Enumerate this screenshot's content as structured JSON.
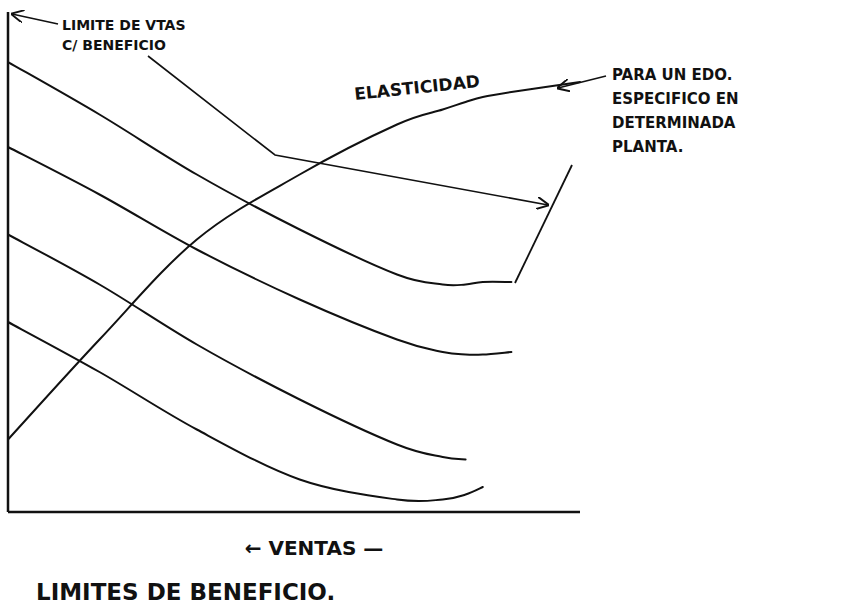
{
  "chart_data": {
    "type": "line",
    "title": "LIMITES DE BENEFICIO.",
    "x_label": "← VENTAS —",
    "x": [
      0,
      16,
      33,
      51,
      68,
      76,
      80,
      83,
      88,
      100
    ],
    "xlim": [
      0,
      100
    ],
    "ylim": [
      0,
      100
    ],
    "tick_labels": false,
    "grid": false,
    "series": [
      {
        "color": "#111111",
        "values": [
          90,
          79.5,
          67.5,
          56.5,
          47.5,
          45.5,
          45.5,
          46,
          46,
          null
        ]
      },
      {
        "color": "#111111",
        "values": [
          73,
          63.5,
          52.5,
          42.5,
          34.5,
          32,
          31.5,
          31.5,
          32,
          null
        ]
      },
      {
        "color": "#111111",
        "values": [
          55.5,
          45.5,
          33.5,
          22.5,
          13.5,
          11,
          10.5,
          null,
          null,
          null
        ]
      },
      {
        "color": "#111111",
        "values": [
          38,
          28,
          16.5,
          6.5,
          2.5,
          2.5,
          3.5,
          5,
          null,
          null
        ]
      },
      {
        "name": "ELASTICIDAD",
        "color": "#111111",
        "values": [
          14.5,
          34.5,
          54.5,
          67.5,
          77.5,
          80.5,
          82,
          83,
          84,
          86
        ]
      }
    ],
    "annotations": [
      {
        "lines": [
          "LIMITE DE VTAS",
          "C/ BENEFICIO"
        ]
      },
      {
        "lines": [
          "PARA UN EDO.",
          "ESPECIFICO EN",
          "DETERMINADA",
          "PLANTA."
        ]
      }
    ]
  }
}
